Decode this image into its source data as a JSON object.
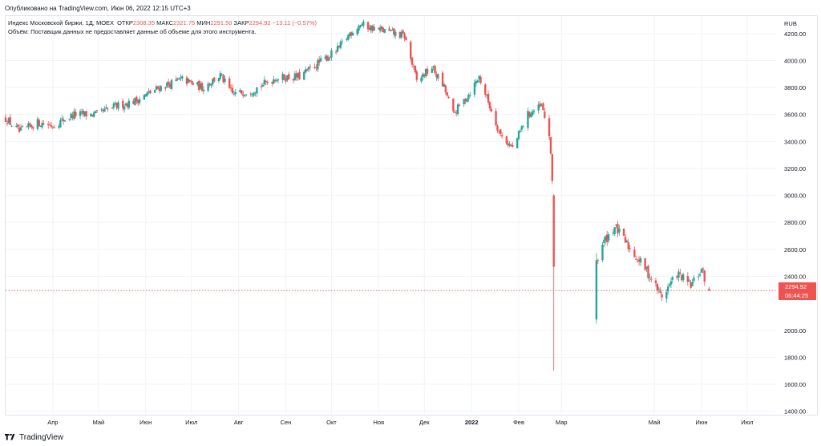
{
  "header": {
    "published_text": "Опубликовано на TradingView.com, Июн 06, 2022 12:15 UTC+3"
  },
  "legend": {
    "symbol": "Индекс Московской биржи, 1Д, MOEX",
    "open_label": "ОТКР",
    "open_value": "2308.35",
    "high_label": "МАКС",
    "high_value": "2321.75",
    "low_label": "МИН",
    "low_value": "2291.50",
    "close_label": "ЗАКР",
    "close_value": "2294.92",
    "change_value": "−13.11 (−0.57%)",
    "volume_note": "Объём: Поставщик данных не предоставляет данные об объеме для этого инструмента."
  },
  "price_axis": {
    "currency": "RUB",
    "tick_labels": [
      "4200.00",
      "4000.00",
      "3800.00",
      "3600.00",
      "3400.00",
      "3200.00",
      "3000.00",
      "2800.00",
      "2600.00",
      "2400.00",
      "2000.00",
      "1800.00",
      "1600.00",
      "1400.00"
    ]
  },
  "time_axis": {
    "labels": [
      "Апр",
      "Май",
      "Июн",
      "Июл",
      "Авг",
      "Сен",
      "Окт",
      "Ноя",
      "Дек",
      "2022",
      "Фев",
      "Мар",
      "Май",
      "Июн",
      "Июл"
    ]
  },
  "last_price": {
    "price": "2294.92",
    "countdown": "06:44:25"
  },
  "footer": {
    "brand": "TradingView"
  },
  "colors": {
    "up": "#26a69a",
    "down": "#ef5350",
    "grid": "#f0f3fa",
    "text": "#131722",
    "price_line": "#ef5350"
  },
  "chart_data": {
    "type": "candlestick",
    "instrument": "Индекс Московской биржи",
    "interval": "1Д",
    "exchange": "MOEX",
    "y_range": [
      1380,
      4330
    ],
    "time_range": [
      "2021-03-01",
      "2022-07-20"
    ],
    "last_price": 2294.92,
    "anchors": [
      [
        "2021-03-01",
        3570
      ],
      [
        "2021-03-10",
        3470
      ],
      [
        "2021-03-22",
        3540
      ],
      [
        "2021-04-01",
        3520
      ],
      [
        "2021-04-15",
        3600
      ],
      [
        "2021-04-30",
        3600
      ],
      [
        "2021-05-12",
        3660
      ],
      [
        "2021-05-25",
        3700
      ],
      [
        "2021-06-10",
        3800
      ],
      [
        "2021-06-25",
        3860
      ],
      [
        "2021-07-08",
        3800
      ],
      [
        "2021-07-20",
        3890
      ],
      [
        "2021-07-28",
        3750
      ],
      [
        "2021-08-10",
        3780
      ],
      [
        "2021-08-25",
        3870
      ],
      [
        "2021-09-10",
        3880
      ],
      [
        "2021-09-25",
        4000
      ],
      [
        "2021-10-05",
        4080
      ],
      [
        "2021-10-13",
        4200
      ],
      [
        "2021-10-20",
        4270
      ],
      [
        "2021-10-28",
        4240
      ],
      [
        "2021-11-08",
        4210
      ],
      [
        "2021-11-18",
        4180
      ],
      [
        "2021-11-26",
        3850
      ],
      [
        "2021-12-06",
        3950
      ],
      [
        "2021-12-14",
        3800
      ],
      [
        "2021-12-20",
        3600
      ],
      [
        "2021-12-30",
        3750
      ],
      [
        "2022-01-06",
        3880
      ],
      [
        "2022-01-14",
        3630
      ],
      [
        "2022-01-20",
        3450
      ],
      [
        "2022-01-28",
        3350
      ],
      [
        "2022-02-07",
        3600
      ],
      [
        "2022-02-16",
        3660
      ],
      [
        "2022-02-21",
        3450
      ],
      [
        "2022-02-24",
        2940
      ],
      [
        "2022-03-24",
        2500
      ],
      [
        "2022-03-28",
        2640
      ],
      [
        "2022-04-05",
        2770
      ],
      [
        "2022-04-14",
        2620
      ],
      [
        "2022-04-25",
        2460
      ],
      [
        "2022-05-06",
        2250
      ],
      [
        "2022-05-16",
        2420
      ],
      [
        "2022-05-25",
        2330
      ],
      [
        "2022-06-01",
        2450
      ],
      [
        "2022-06-06",
        2295
      ]
    ],
    "notable_bars": [
      {
        "date": "2022-02-24",
        "open": 3000,
        "high": 3010,
        "low": 1700,
        "close": 2470
      },
      {
        "date": "2022-03-24",
        "open": 2080,
        "high": 2570,
        "low": 2050,
        "close": 2520
      },
      {
        "date": "2022-06-06",
        "open": 2308.35,
        "high": 2321.75,
        "low": 2291.5,
        "close": 2294.92
      }
    ]
  }
}
